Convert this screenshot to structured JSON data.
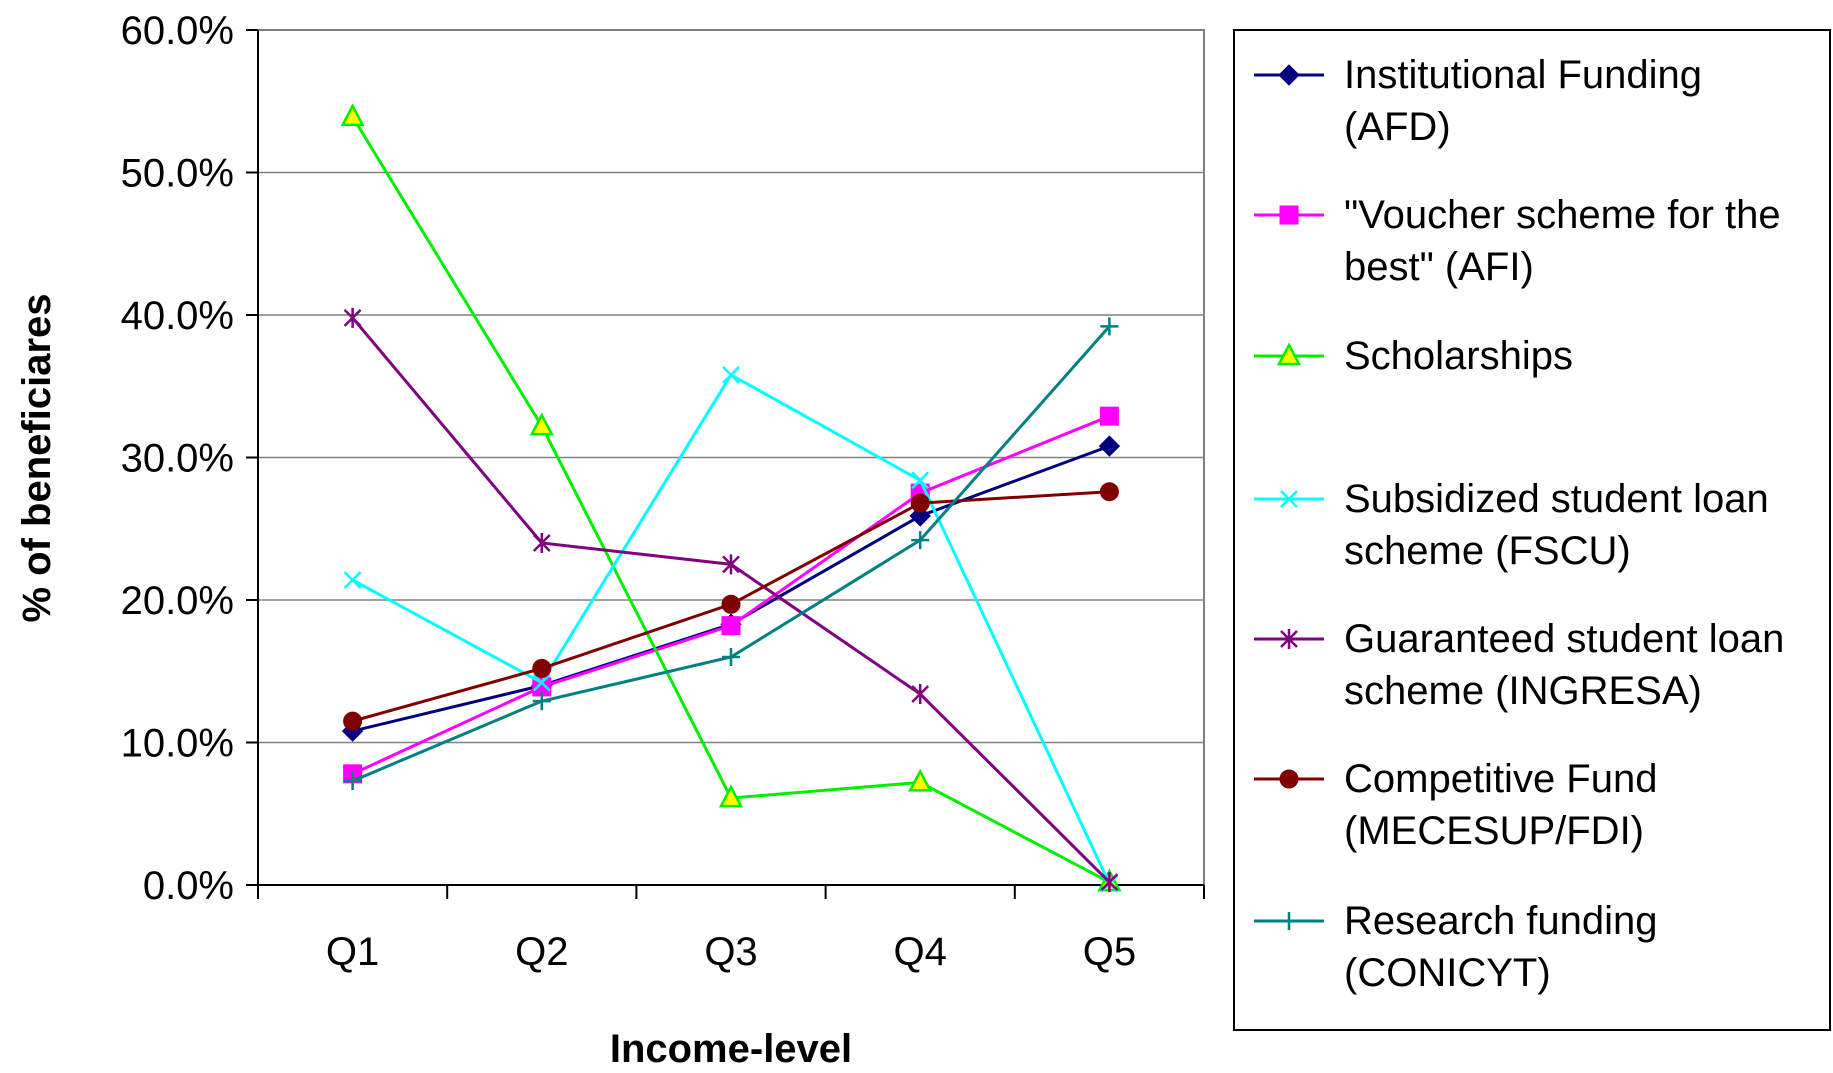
{
  "chart_data": {
    "type": "line",
    "categories": [
      "Q1",
      "Q2",
      "Q3",
      "Q4",
      "Q5"
    ],
    "xlabel": "Income-level",
    "ylabel": "% of beneficiares",
    "ylim": [
      0,
      60
    ],
    "yticks": [
      "0.0%",
      "10.0%",
      "20.0%",
      "30.0%",
      "40.0%",
      "50.0%",
      "60.0%"
    ],
    "grid": true,
    "legend_position": "right",
    "series": [
      {
        "name": "Institutional Funding (AFD)",
        "legend_lines": [
          "Institutional Funding",
          "(AFD)"
        ],
        "color": "#000080",
        "marker": "diamond",
        "values": [
          10.8,
          14.0,
          18.3,
          25.9,
          30.8
        ]
      },
      {
        "name": "\"Voucher scheme for the best\" (AFI)",
        "legend_lines": [
          "\"Voucher scheme for the",
          "best\" (AFI)"
        ],
        "color": "#FF00FF",
        "marker": "square",
        "values": [
          7.8,
          13.9,
          18.2,
          27.5,
          32.9
        ]
      },
      {
        "name": "Scholarships",
        "legend_lines": [
          "Scholarships"
        ],
        "color": "#00EE00",
        "marker": "triangle",
        "values": [
          53.9,
          32.2,
          6.1,
          7.2,
          0.2
        ]
      },
      {
        "name": "Subsidized student loan scheme (FSCU)",
        "legend_lines": [
          "Subsidized student loan",
          "scheme (FSCU)"
        ],
        "color": "#00FFFF",
        "marker": "x",
        "values": [
          21.4,
          14.2,
          35.8,
          28.4,
          0.1
        ]
      },
      {
        "name": "Guaranteed student loan scheme (INGRESA)",
        "legend_lines": [
          "Guaranteed student loan",
          "scheme (INGRESA)"
        ],
        "color": "#800080",
        "marker": "star",
        "values": [
          39.8,
          24.0,
          22.5,
          13.4,
          0.2
        ]
      },
      {
        "name": "Competitive Fund (MECESUP/FDI)",
        "legend_lines": [
          "Competitive Fund",
          "(MECESUP/FDI)"
        ],
        "color": "#800000",
        "marker": "circle",
        "values": [
          11.5,
          15.2,
          19.7,
          26.8,
          27.6
        ]
      },
      {
        "name": "Research funding (CONICYT)",
        "legend_lines": [
          "Research funding",
          "(CONICYT)"
        ],
        "color": "#008080",
        "marker": "plus",
        "values": [
          7.3,
          12.9,
          16.0,
          24.2,
          39.2
        ]
      }
    ]
  }
}
